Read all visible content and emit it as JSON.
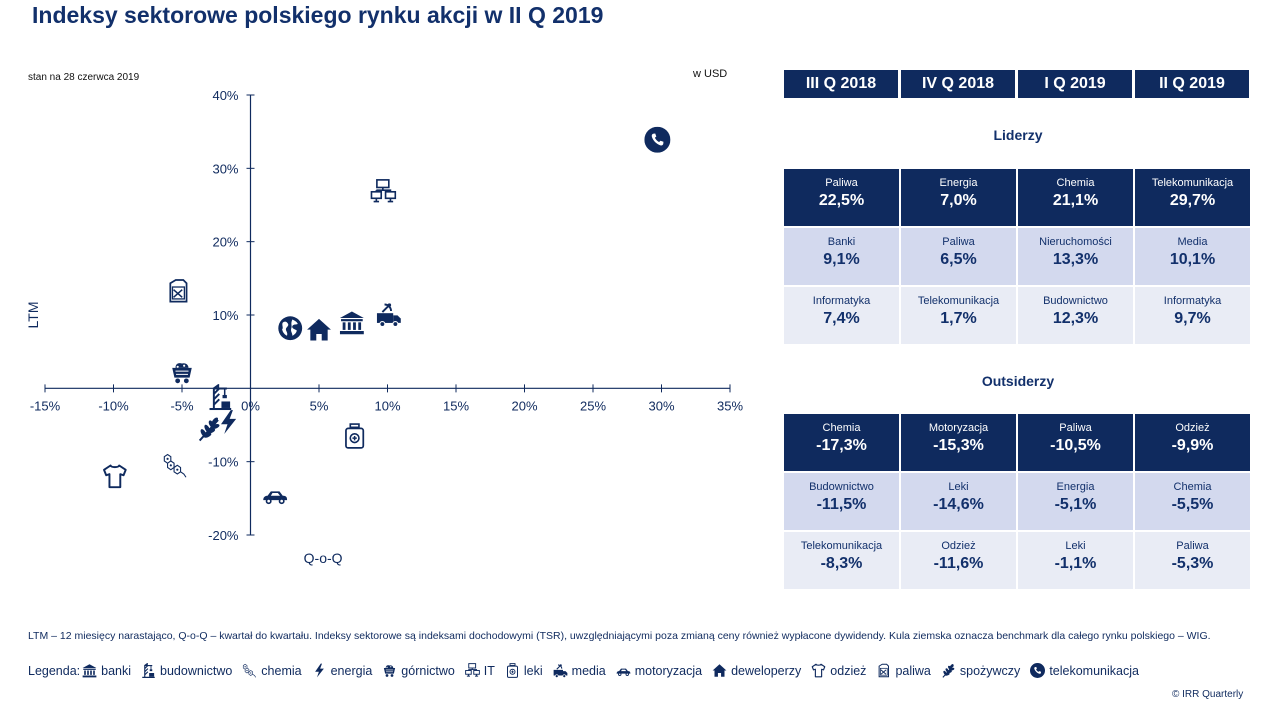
{
  "title": "Indeksy sektorowe polskiego rynku akcji w II Q 2019",
  "as_of": "stan na 28 czerwca 2019",
  "unit": "w USD",
  "chart_data": {
    "type": "scatter",
    "xlabel": "Q-o-Q",
    "ylabel": "LTM",
    "xlim": [
      -15,
      35
    ],
    "ylim": [
      -20,
      40
    ],
    "x_ticks": [
      "-15%",
      "-10%",
      "-5%",
      "0%",
      "5%",
      "10%",
      "15%",
      "20%",
      "25%",
      "30%",
      "35%"
    ],
    "y_ticks": [
      "40%",
      "30%",
      "20%",
      "10%",
      "-10%",
      "-20%"
    ],
    "points": [
      {
        "sector": "telekomunikacja",
        "icon": "phone-icon",
        "x": 29.7,
        "y": 33.9
      },
      {
        "sector": "IT",
        "icon": "computers-icon",
        "x": 9.7,
        "y": 26.8
      },
      {
        "sector": "paliwa",
        "icon": "fuel-can-icon",
        "x": -5.3,
        "y": 13.3
      },
      {
        "sector": "media",
        "icon": "media-van-icon",
        "x": 10.1,
        "y": 10.1
      },
      {
        "sector": "banki",
        "icon": "bank-icon",
        "x": 7.4,
        "y": 9.0
      },
      {
        "sector": "deweloperzy",
        "icon": "house-icon",
        "x": 5.0,
        "y": 8.0
      },
      {
        "sector": "WIG (benchmark)",
        "icon": "globe-icon",
        "x": 2.9,
        "y": 8.2
      },
      {
        "sector": "górnictwo",
        "icon": "mine-cart-icon",
        "x": -5.0,
        "y": 2.2
      },
      {
        "sector": "budownictwo",
        "icon": "crane-icon",
        "x": -2.2,
        "y": -1.2
      },
      {
        "sector": "energia",
        "icon": "lightning-icon",
        "x": -1.6,
        "y": -4.6
      },
      {
        "sector": "spożywczy",
        "icon": "wheat-icon",
        "x": -3.0,
        "y": -5.5
      },
      {
        "sector": "leki",
        "icon": "pill-bottle-icon",
        "x": 7.6,
        "y": -6.5
      },
      {
        "sector": "chemia",
        "icon": "molecule-icon",
        "x": -5.5,
        "y": -10.5
      },
      {
        "sector": "odzież",
        "icon": "shirt-icon",
        "x": -9.9,
        "y": -12.0
      },
      {
        "sector": "motoryzacja",
        "icon": "car-icon",
        "x": 1.8,
        "y": -14.5
      }
    ]
  },
  "table": {
    "quarters": [
      "III Q 2018",
      "IV Q 2018",
      "I Q 2019",
      "II Q 2019"
    ],
    "leaders_label": "Liderzy",
    "outsiders_label": "Outsiderzy",
    "leaders": [
      [
        {
          "name": "Paliwa",
          "value": "22,5%"
        },
        {
          "name": "Energia",
          "value": "7,0%"
        },
        {
          "name": "Chemia",
          "value": "21,1%"
        },
        {
          "name": "Telekomunikacja",
          "value": "29,7%"
        }
      ],
      [
        {
          "name": "Banki",
          "value": "9,1%"
        },
        {
          "name": "Paliwa",
          "value": "6,5%"
        },
        {
          "name": "Nieruchomości",
          "value": "13,3%"
        },
        {
          "name": "Media",
          "value": "10,1%"
        }
      ],
      [
        {
          "name": "Informatyka",
          "value": "7,4%"
        },
        {
          "name": "Telekomunikacja",
          "value": "1,7%"
        },
        {
          "name": "Budownictwo",
          "value": "12,3%"
        },
        {
          "name": "Informatyka",
          "value": "9,7%"
        }
      ]
    ],
    "outsiders": [
      [
        {
          "name": "Chemia",
          "value": "-17,3%"
        },
        {
          "name": "Motoryzacja",
          "value": "-15,3%"
        },
        {
          "name": "Paliwa",
          "value": "-10,5%"
        },
        {
          "name": "Odzież",
          "value": "-9,9%"
        }
      ],
      [
        {
          "name": "Budownictwo",
          "value": "-11,5%"
        },
        {
          "name": "Leki",
          "value": "-14,6%"
        },
        {
          "name": "Energia",
          "value": "-5,1%"
        },
        {
          "name": "Chemia",
          "value": "-5,5%"
        }
      ],
      [
        {
          "name": "Telekomunikacja",
          "value": "-8,3%"
        },
        {
          "name": "Odzież",
          "value": "-11,6%"
        },
        {
          "name": "Leki",
          "value": "-1,1%"
        },
        {
          "name": "Paliwa",
          "value": "-5,3%"
        }
      ]
    ]
  },
  "note": "LTM – 12 miesięcy narastająco, Q-o-Q – kwartał do kwartału. Indeksy sektorowe są indeksami dochodowymi (TSR), uwzględniającymi poza zmianą ceny również wypłacone dywidendy. Kula ziemska oznacza benchmark dla całego rynku polskiego – WIG.",
  "legend": {
    "label": "Legenda:",
    "items": [
      {
        "label": "banki",
        "icon": "bank-icon"
      },
      {
        "label": "budownictwo",
        "icon": "crane-icon"
      },
      {
        "label": "chemia",
        "icon": "molecule-icon"
      },
      {
        "label": "energia",
        "icon": "lightning-icon"
      },
      {
        "label": "górnictwo",
        "icon": "mine-cart-icon"
      },
      {
        "label": "IT",
        "icon": "computers-icon"
      },
      {
        "label": "leki",
        "icon": "pill-bottle-icon"
      },
      {
        "label": "media",
        "icon": "media-van-icon"
      },
      {
        "label": "motoryzacja",
        "icon": "car-icon"
      },
      {
        "label": "deweloperzy",
        "icon": "house-icon"
      },
      {
        "label": "odzież",
        "icon": "shirt-icon"
      },
      {
        "label": "paliwa",
        "icon": "fuel-can-icon"
      },
      {
        "label": "spożywczy",
        "icon": "wheat-icon"
      },
      {
        "label": "telekomunikacja",
        "icon": "phone-icon"
      }
    ]
  },
  "copyright": "© IRR Quarterly",
  "colors": {
    "navy": "#0f2a5e",
    "light_row": "#d3d9ee",
    "lighter_row": "#e9ecf5"
  }
}
